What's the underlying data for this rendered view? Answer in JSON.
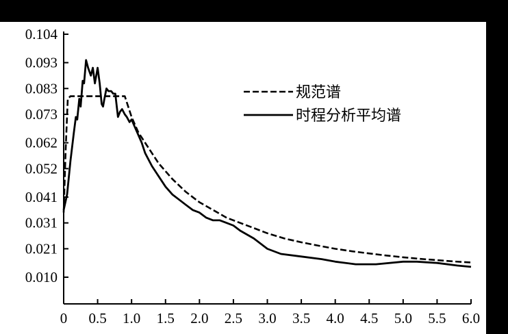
{
  "chart_data": {
    "type": "line",
    "title": "",
    "xlabel": "",
    "ylabel": "",
    "xlim": [
      0,
      6.0
    ],
    "ylim": [
      0,
      0.104
    ],
    "x_ticks": [
      0,
      0.5,
      1.0,
      1.5,
      2.0,
      2.5,
      3.0,
      3.5,
      4.0,
      4.5,
      5.0,
      5.5,
      6.0
    ],
    "x_tick_labels": [
      "0",
      "0.5",
      "1.0",
      "1.5",
      "2.0",
      "2.5",
      "3.0",
      "3.5",
      "4.0",
      "4.5",
      "5.0",
      "5.5",
      "6.0"
    ],
    "y_ticks": [
      0.01,
      0.021,
      0.031,
      0.041,
      0.052,
      0.062,
      0.073,
      0.083,
      0.093,
      0.104
    ],
    "y_tick_labels": [
      "0.010",
      "0.021",
      "0.031",
      "0.041",
      "0.052",
      "0.062",
      "0.073",
      "0.083",
      "0.093",
      "0.104"
    ],
    "grid": false,
    "legend_position": "top-right",
    "series": [
      {
        "name": "规范谱",
        "style": "dashed",
        "color": "#000000",
        "x": [
          0,
          0.03,
          0.06,
          0.1,
          0.2,
          0.3,
          0.4,
          0.5,
          0.6,
          0.7,
          0.8,
          0.9,
          1.0,
          1.1,
          1.2,
          1.3,
          1.4,
          1.5,
          1.6,
          1.8,
          2.0,
          2.2,
          2.4,
          2.6,
          2.8,
          3.0,
          3.25,
          3.5,
          3.75,
          4.0,
          4.25,
          4.5,
          4.75,
          5.0,
          5.25,
          5.5,
          5.75,
          6.0
        ],
        "y": [
          0.035,
          0.06,
          0.079,
          0.08,
          0.08,
          0.08,
          0.08,
          0.08,
          0.08,
          0.08,
          0.08,
          0.08,
          0.072,
          0.066,
          0.062,
          0.058,
          0.054,
          0.051,
          0.048,
          0.043,
          0.039,
          0.036,
          0.033,
          0.031,
          0.029,
          0.027,
          0.025,
          0.0235,
          0.0222,
          0.021,
          0.02,
          0.0192,
          0.0184,
          0.0177,
          0.0171,
          0.0166,
          0.0161,
          0.0157
        ]
      },
      {
        "name": "时程分析平均谱",
        "style": "solid",
        "color": "#000000",
        "x": [
          0,
          0.05,
          0.1,
          0.15,
          0.18,
          0.2,
          0.23,
          0.25,
          0.28,
          0.3,
          0.33,
          0.36,
          0.4,
          0.43,
          0.46,
          0.5,
          0.53,
          0.56,
          0.58,
          0.6,
          0.63,
          0.66,
          0.7,
          0.73,
          0.76,
          0.8,
          0.83,
          0.86,
          0.9,
          0.93,
          0.97,
          1.0,
          1.05,
          1.1,
          1.15,
          1.2,
          1.3,
          1.4,
          1.5,
          1.6,
          1.7,
          1.8,
          1.9,
          2.0,
          2.1,
          2.2,
          2.3,
          2.4,
          2.5,
          2.6,
          2.8,
          3.0,
          3.2,
          3.5,
          3.8,
          4.0,
          4.3,
          4.6,
          5.0,
          5.2,
          5.5,
          5.8,
          6.0
        ],
        "y": [
          0.036,
          0.042,
          0.055,
          0.066,
          0.072,
          0.071,
          0.079,
          0.076,
          0.086,
          0.085,
          0.094,
          0.091,
          0.088,
          0.091,
          0.085,
          0.091,
          0.085,
          0.077,
          0.076,
          0.079,
          0.083,
          0.082,
          0.082,
          0.081,
          0.081,
          0.072,
          0.074,
          0.075,
          0.073,
          0.072,
          0.07,
          0.071,
          0.068,
          0.065,
          0.062,
          0.058,
          0.053,
          0.049,
          0.045,
          0.042,
          0.04,
          0.038,
          0.036,
          0.035,
          0.033,
          0.032,
          0.032,
          0.031,
          0.03,
          0.028,
          0.025,
          0.021,
          0.019,
          0.018,
          0.017,
          0.016,
          0.015,
          0.015,
          0.016,
          0.016,
          0.0155,
          0.0145,
          0.014
        ]
      }
    ]
  }
}
